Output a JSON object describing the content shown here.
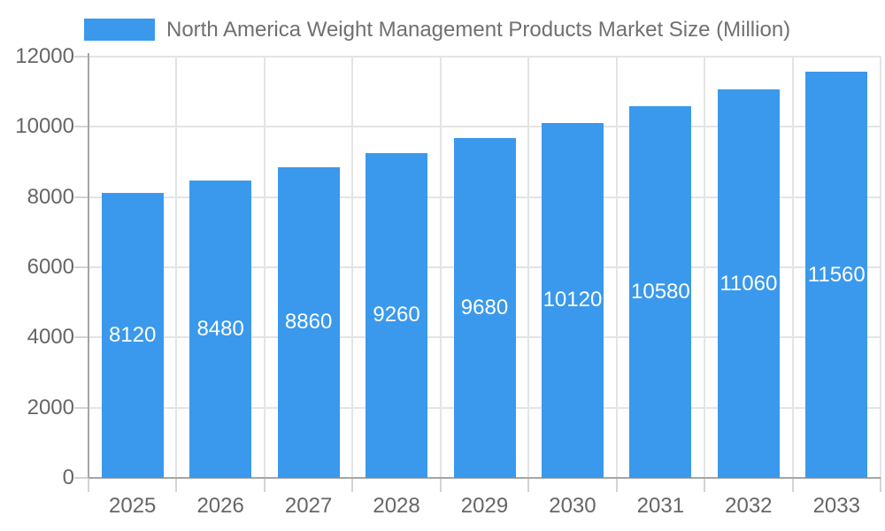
{
  "chart_data": {
    "type": "bar",
    "title": "North America Weight Management Products Market Size (Million)",
    "legend_entries": [
      "North America Weight Management Products Market Size (Million)"
    ],
    "legend_position": "top-center",
    "categories": [
      "2025",
      "2026",
      "2027",
      "2028",
      "2029",
      "2030",
      "2031",
      "2032",
      "2033"
    ],
    "series": [
      {
        "name": "North America Weight Management Products Market Size (Million)",
        "values": [
          8120,
          8480,
          8860,
          9260,
          9680,
          10120,
          10580,
          11060,
          11560
        ]
      }
    ],
    "value_labels": [
      "8120",
      "8480",
      "8860",
      "9260",
      "9680",
      "10120",
      "10580",
      "11060",
      "11560"
    ],
    "xlabel": "",
    "ylabel": "",
    "ylim": [
      0,
      12000
    ],
    "yticks": [
      0,
      2000,
      4000,
      6000,
      8000,
      10000,
      12000
    ],
    "ytick_labels": [
      "0",
      "2000",
      "4000",
      "6000",
      "8000",
      "10000",
      "12000"
    ],
    "grid": "horizontal and vertical light gray gridlines",
    "colors": {
      "bar": "#3A99EC",
      "bar_value_text": "#ffffff",
      "axis_line": "#a6a6a6",
      "gridline": "#e4e4e4",
      "tick": "#d4d4d4",
      "axis_label_text": "#666666",
      "legend_text": "#707070",
      "background": "#ffffff"
    }
  }
}
